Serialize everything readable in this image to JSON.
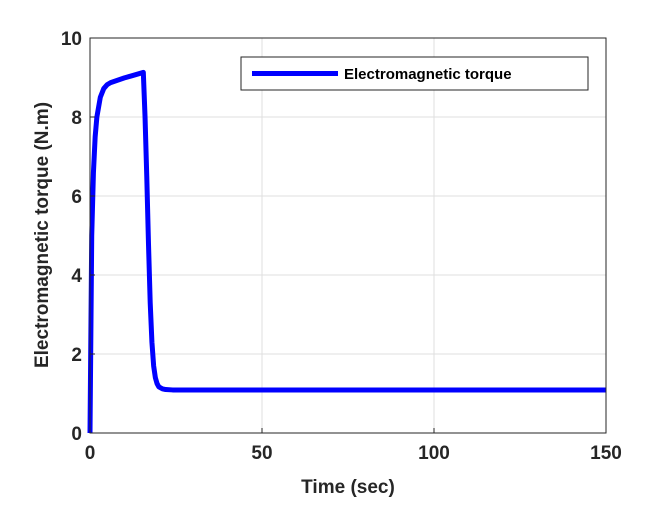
{
  "chart_data": {
    "type": "line",
    "title": "",
    "xlabel": "Time (sec)",
    "ylabel": "Electromagnetic torque (N.m)",
    "xlim": [
      0,
      150
    ],
    "ylim": [
      0,
      10
    ],
    "xticks": [
      0,
      50,
      100,
      150
    ],
    "yticks": [
      0,
      2,
      4,
      6,
      8,
      10
    ],
    "xtick_labels": [
      "0",
      "50",
      "100",
      "150"
    ],
    "ytick_labels": [
      "0",
      "2",
      "4",
      "6",
      "8",
      "10"
    ],
    "grid": true,
    "legend": {
      "placement": "top-right",
      "entries": [
        "Electromagnetic torque"
      ]
    },
    "series": [
      {
        "name": "Electromagnetic torque",
        "color": "#0000ff",
        "x": [
          0,
          0.5,
          1,
          1.5,
          2,
          3,
          4,
          5,
          6,
          8,
          10,
          12,
          14,
          15.5,
          16,
          16.5,
          17,
          17.5,
          18,
          18.5,
          19,
          19.5,
          20,
          21,
          22,
          24,
          26,
          30,
          40,
          60,
          80,
          100,
          120,
          140,
          150
        ],
        "y": [
          0,
          5.0,
          6.6,
          7.5,
          8.0,
          8.5,
          8.72,
          8.82,
          8.87,
          8.93,
          8.99,
          9.04,
          9.09,
          9.13,
          8.0,
          6.5,
          4.8,
          3.3,
          2.3,
          1.7,
          1.4,
          1.25,
          1.17,
          1.12,
          1.1,
          1.09,
          1.09,
          1.09,
          1.09,
          1.09,
          1.09,
          1.09,
          1.09,
          1.09,
          1.09
        ]
      }
    ]
  }
}
